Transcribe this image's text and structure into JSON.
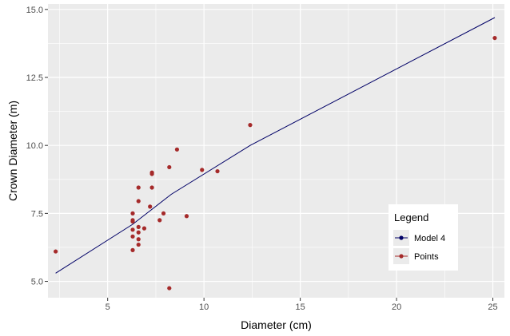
{
  "chart_data": {
    "type": "scatter",
    "xlabel": "Diameter (cm)",
    "ylabel": "Crown Diameter (m)",
    "xlim": [
      1.9,
      25.6
    ],
    "ylim": [
      4.4,
      15.2
    ],
    "x_ticks": [
      5,
      10,
      15,
      20,
      25
    ],
    "x_tick_labels": [
      "5",
      "10",
      "15",
      "20",
      "25"
    ],
    "y_ticks": [
      5.0,
      7.5,
      10.0,
      12.5,
      15.0
    ],
    "y_tick_labels": [
      "5.0",
      "7.5",
      "10.0",
      "12.5",
      "15.0"
    ],
    "grid": true,
    "legend": {
      "title": "Legend",
      "position": "bottom-right",
      "entries": [
        {
          "label": "Model 4",
          "color": "#000066"
        },
        {
          "label": "Points",
          "color": "#a52a2a"
        }
      ]
    },
    "series": [
      {
        "name": "Model 4",
        "type": "line",
        "color": "#000066",
        "x": [
          2.3,
          6.3,
          8.3,
          12.4,
          25.1
        ],
        "y": [
          5.3,
          7.1,
          8.2,
          10.0,
          14.7
        ]
      },
      {
        "name": "Points",
        "type": "scatter",
        "color": "#a52a2a",
        "x": [
          2.3,
          6.3,
          6.3,
          6.3,
          6.3,
          6.3,
          6.3,
          6.6,
          6.6,
          6.6,
          6.6,
          6.6,
          6.6,
          6.9,
          7.2,
          7.3,
          7.3,
          7.3,
          7.7,
          7.9,
          8.2,
          8.2,
          8.6,
          9.1,
          9.9,
          10.7,
          12.4,
          25.1
        ],
        "y": [
          6.1,
          6.15,
          6.65,
          6.9,
          7.2,
          7.25,
          7.5,
          6.35,
          6.55,
          6.8,
          7.0,
          7.95,
          8.45,
          6.95,
          7.75,
          8.45,
          8.95,
          9.0,
          7.25,
          7.5,
          4.75,
          9.2,
          9.85,
          7.4,
          9.1,
          9.05,
          10.75,
          13.95
        ]
      }
    ]
  }
}
